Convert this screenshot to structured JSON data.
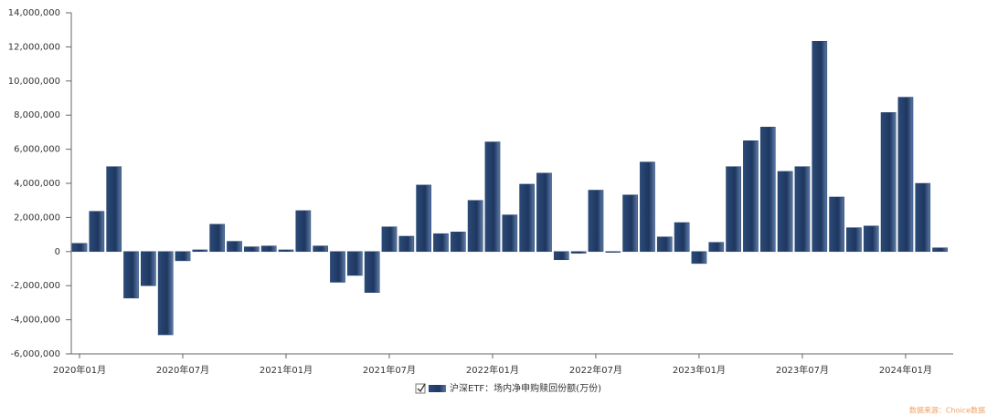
{
  "chart_data": {
    "type": "bar",
    "categories": [
      "2020年01月",
      null,
      null,
      null,
      null,
      null,
      "2020年07月",
      null,
      null,
      null,
      null,
      null,
      "2021年01月",
      null,
      null,
      null,
      null,
      null,
      "2021年07月",
      null,
      null,
      null,
      null,
      null,
      "2022年01月",
      null,
      null,
      null,
      null,
      null,
      "2022年07月",
      null,
      null,
      null,
      null,
      null,
      "2023年01月",
      null,
      null,
      null,
      null,
      null,
      "2023年07月",
      null,
      null,
      null,
      null,
      null,
      "2024年01月",
      null,
      null
    ],
    "series": [
      {
        "name": "沪深ETF：场内净申购赎回份额(万份)",
        "color": "#24406a",
        "values": [
          480000,
          2360000,
          4980000,
          -2730000,
          -2000000,
          -4880000,
          -540000,
          100000,
          1600000,
          600000,
          280000,
          330000,
          100000,
          2400000,
          330000,
          -1800000,
          -1400000,
          -2400000,
          1450000,
          900000,
          3900000,
          1050000,
          1150000,
          3000000,
          6430000,
          2150000,
          3950000,
          4600000,
          -480000,
          -100000,
          3600000,
          -50000,
          3320000,
          5250000,
          860000,
          1700000,
          -700000,
          540000,
          4980000,
          6500000,
          7300000,
          4700000,
          4980000,
          12330000,
          3200000,
          1400000,
          1500000,
          8150000,
          9050000,
          4000000,
          220000
        ]
      }
    ],
    "ylim": [
      -6000000,
      14000000
    ],
    "yticks": [
      {
        "value": -6000000,
        "label": "-6,000,000"
      },
      {
        "value": -4000000,
        "label": "-4,000,000"
      },
      {
        "value": -2000000,
        "label": "-2,000,000"
      },
      0,
      {
        "value": 2000000,
        "label": "2,000,000"
      },
      {
        "value": 4000000,
        "label": "4,000,000"
      },
      {
        "value": 6000000,
        "label": "6,000,000"
      },
      {
        "value": 8000000,
        "label": "8,000,000"
      },
      {
        "value": 10000000,
        "label": "10,000,000"
      },
      {
        "value": 12000000,
        "label": "12,000,000"
      },
      {
        "value": 14000000,
        "label": "14,000,000"
      }
    ],
    "source": "数据来源：Choice数据"
  }
}
